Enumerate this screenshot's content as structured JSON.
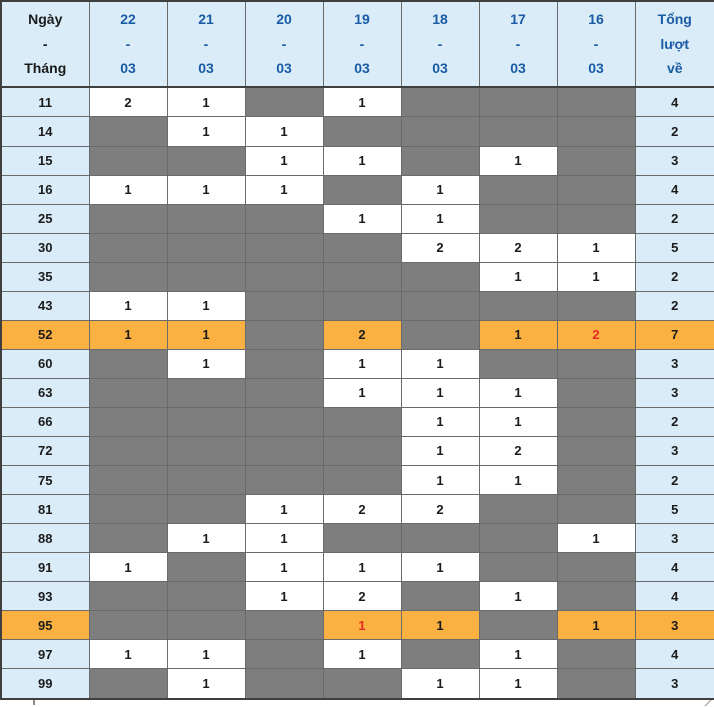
{
  "colors": {
    "header_bg": "#D9ECF7",
    "row_label_bg": "#D9ECF7",
    "empty_cell_gray": "#7E7E7E",
    "highlight_orange": "#FBB042",
    "header_text_blue": "#1A5BA5",
    "text_dark": "#1B1B1B",
    "red_value": "#E62B2B"
  },
  "table": {
    "columns": [
      {
        "lines": [
          "Ngày",
          "-",
          "Tháng"
        ],
        "text_style": "dark"
      },
      {
        "lines": [
          "22",
          "-",
          "03"
        ],
        "text_style": "blue"
      },
      {
        "lines": [
          "21",
          "-",
          "03"
        ],
        "text_style": "blue"
      },
      {
        "lines": [
          "20",
          "-",
          "03"
        ],
        "text_style": "blue"
      },
      {
        "lines": [
          "19",
          "-",
          "03"
        ],
        "text_style": "blue"
      },
      {
        "lines": [
          "18",
          "-",
          "03"
        ],
        "text_style": "blue"
      },
      {
        "lines": [
          "17",
          "-",
          "03"
        ],
        "text_style": "blue"
      },
      {
        "lines": [
          "16",
          "-",
          "03"
        ],
        "text_style": "blue"
      },
      {
        "lines": [
          "Tổng",
          "lượt",
          "về"
        ],
        "text_style": "blue"
      }
    ],
    "rows": [
      {
        "number": "11",
        "cells": [
          "2",
          "1",
          null,
          "1",
          null,
          null,
          null
        ],
        "total": "4",
        "highlighted": false,
        "red_cells": []
      },
      {
        "number": "14",
        "cells": [
          null,
          "1",
          "1",
          null,
          null,
          null,
          null
        ],
        "total": "2",
        "highlighted": false,
        "red_cells": []
      },
      {
        "number": "15",
        "cells": [
          null,
          null,
          "1",
          "1",
          null,
          "1",
          null
        ],
        "total": "3",
        "highlighted": false,
        "red_cells": []
      },
      {
        "number": "16",
        "cells": [
          "1",
          "1",
          "1",
          null,
          "1",
          null,
          null
        ],
        "total": "4",
        "highlighted": false,
        "red_cells": []
      },
      {
        "number": "25",
        "cells": [
          null,
          null,
          null,
          "1",
          "1",
          null,
          null
        ],
        "total": "2",
        "highlighted": false,
        "red_cells": []
      },
      {
        "number": "30",
        "cells": [
          null,
          null,
          null,
          null,
          "2",
          "2",
          "1"
        ],
        "total": "5",
        "highlighted": false,
        "red_cells": []
      },
      {
        "number": "35",
        "cells": [
          null,
          null,
          null,
          null,
          null,
          "1",
          "1"
        ],
        "total": "2",
        "highlighted": false,
        "red_cells": []
      },
      {
        "number": "43",
        "cells": [
          "1",
          "1",
          null,
          null,
          null,
          null,
          null
        ],
        "total": "2",
        "highlighted": false,
        "red_cells": []
      },
      {
        "number": "52",
        "cells": [
          "1",
          "1",
          null,
          "2",
          null,
          "1",
          "2"
        ],
        "total": "7",
        "highlighted": true,
        "red_cells": [
          6
        ]
      },
      {
        "number": "60",
        "cells": [
          null,
          "1",
          null,
          "1",
          "1",
          null,
          null
        ],
        "total": "3",
        "highlighted": false,
        "red_cells": []
      },
      {
        "number": "63",
        "cells": [
          null,
          null,
          null,
          "1",
          "1",
          "1",
          null
        ],
        "total": "3",
        "highlighted": false,
        "red_cells": []
      },
      {
        "number": "66",
        "cells": [
          null,
          null,
          null,
          null,
          "1",
          "1",
          null
        ],
        "total": "2",
        "highlighted": false,
        "red_cells": []
      },
      {
        "number": "72",
        "cells": [
          null,
          null,
          null,
          null,
          "1",
          "2",
          null
        ],
        "total": "3",
        "highlighted": false,
        "red_cells": []
      },
      {
        "number": "75",
        "cells": [
          null,
          null,
          null,
          null,
          "1",
          "1",
          null
        ],
        "total": "2",
        "highlighted": false,
        "red_cells": []
      },
      {
        "number": "81",
        "cells": [
          null,
          null,
          "1",
          "2",
          "2",
          null,
          null
        ],
        "total": "5",
        "highlighted": false,
        "red_cells": []
      },
      {
        "number": "88",
        "cells": [
          null,
          "1",
          "1",
          null,
          null,
          null,
          "1"
        ],
        "total": "3",
        "highlighted": false,
        "red_cells": []
      },
      {
        "number": "91",
        "cells": [
          "1",
          null,
          "1",
          "1",
          "1",
          null,
          null
        ],
        "total": "4",
        "highlighted": false,
        "red_cells": []
      },
      {
        "number": "93",
        "cells": [
          null,
          null,
          "1",
          "2",
          null,
          "1",
          null
        ],
        "total": "4",
        "highlighted": false,
        "red_cells": []
      },
      {
        "number": "95",
        "cells": [
          null,
          null,
          null,
          "1",
          "1",
          null,
          "1"
        ],
        "total": "3",
        "highlighted": true,
        "red_cells": [
          3
        ]
      },
      {
        "number": "97",
        "cells": [
          "1",
          "1",
          null,
          "1",
          null,
          "1",
          null
        ],
        "total": "4",
        "highlighted": false,
        "red_cells": []
      },
      {
        "number": "99",
        "cells": [
          null,
          "1",
          null,
          null,
          "1",
          "1",
          null
        ],
        "total": "3",
        "highlighted": false,
        "red_cells": []
      }
    ]
  },
  "chart_data": {
    "type": "table",
    "title": "Lottery number frequency by date",
    "columns": [
      "Ngày - Tháng",
      "22-03",
      "21-03",
      "20-03",
      "19-03",
      "18-03",
      "17-03",
      "16-03",
      "Tổng lượt về"
    ],
    "rows": [
      [
        11,
        2,
        1,
        null,
        1,
        null,
        null,
        null,
        4
      ],
      [
        14,
        null,
        1,
        1,
        null,
        null,
        null,
        null,
        2
      ],
      [
        15,
        null,
        null,
        1,
        1,
        null,
        1,
        null,
        3
      ],
      [
        16,
        1,
        1,
        1,
        null,
        1,
        null,
        null,
        4
      ],
      [
        25,
        null,
        null,
        null,
        1,
        1,
        null,
        null,
        2
      ],
      [
        30,
        null,
        null,
        null,
        null,
        2,
        2,
        1,
        5
      ],
      [
        35,
        null,
        null,
        null,
        null,
        null,
        1,
        1,
        2
      ],
      [
        43,
        1,
        1,
        null,
        null,
        null,
        null,
        null,
        2
      ],
      [
        52,
        1,
        1,
        null,
        2,
        null,
        1,
        2,
        7
      ],
      [
        60,
        null,
        1,
        null,
        1,
        1,
        null,
        null,
        3
      ],
      [
        63,
        null,
        null,
        null,
        1,
        1,
        1,
        null,
        3
      ],
      [
        66,
        null,
        null,
        null,
        null,
        1,
        1,
        null,
        2
      ],
      [
        72,
        null,
        null,
        null,
        null,
        1,
        2,
        null,
        3
      ],
      [
        75,
        null,
        null,
        null,
        null,
        1,
        1,
        null,
        2
      ],
      [
        81,
        null,
        null,
        1,
        2,
        2,
        null,
        null,
        5
      ],
      [
        88,
        null,
        1,
        1,
        null,
        null,
        null,
        1,
        3
      ],
      [
        91,
        1,
        null,
        1,
        1,
        1,
        null,
        null,
        4
      ],
      [
        93,
        null,
        null,
        1,
        2,
        null,
        1,
        null,
        4
      ],
      [
        95,
        null,
        null,
        null,
        1,
        1,
        null,
        1,
        3
      ],
      [
        97,
        1,
        1,
        null,
        1,
        null,
        1,
        null,
        4
      ],
      [
        99,
        null,
        1,
        null,
        null,
        1,
        1,
        null,
        3
      ]
    ],
    "highlighted_rows": [
      52,
      95
    ],
    "red_values": [
      {
        "row": 52,
        "column": "16-03",
        "value": 2
      },
      {
        "row": 95,
        "column": "19-03",
        "value": 1
      }
    ]
  }
}
